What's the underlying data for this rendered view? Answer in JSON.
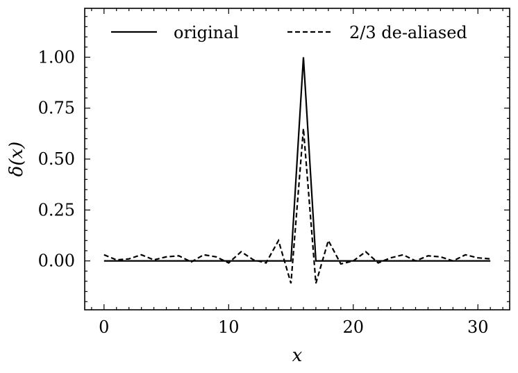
{
  "chart_data": {
    "type": "line",
    "xlabel": "x",
    "ylabel": "δ(x)",
    "xlim": [
      -1.55,
      32.55
    ],
    "ylim": [
      -0.24,
      1.24
    ],
    "x_ticks": [
      0,
      10,
      20,
      30
    ],
    "x_tick_labels": [
      "0",
      "10",
      "20",
      "30"
    ],
    "y_ticks": [
      0.0,
      0.25,
      0.5,
      0.75,
      1.0
    ],
    "y_tick_labels": [
      "0.00",
      "0.25",
      "0.50",
      "0.75",
      "1.00"
    ],
    "legend_position": "top",
    "grid": false,
    "x": [
      0,
      1,
      2,
      3,
      4,
      5,
      6,
      7,
      8,
      9,
      10,
      11,
      12,
      13,
      14,
      15,
      16,
      17,
      18,
      19,
      20,
      21,
      22,
      23,
      24,
      25,
      26,
      27,
      28,
      29,
      30,
      31
    ],
    "series": [
      {
        "name": "original",
        "style": "solid",
        "color": "#000000",
        "values": [
          0,
          0,
          0,
          0,
          0,
          0,
          0,
          0,
          0,
          0,
          0,
          0,
          0,
          0,
          0,
          0,
          1,
          0,
          0,
          0,
          0,
          0,
          0,
          0,
          0,
          0,
          0,
          0,
          0,
          0,
          0,
          0
        ]
      },
      {
        "name": "2/3 de-aliased",
        "style": "dashed",
        "color": "#000000",
        "values": [
          0.03,
          0.005,
          0.01,
          0.03,
          0.005,
          0.02,
          0.025,
          -0.005,
          0.03,
          0.02,
          -0.01,
          0.045,
          0.005,
          -0.01,
          0.1,
          -0.11,
          0.65,
          -0.11,
          0.1,
          -0.015,
          0.0,
          0.045,
          -0.01,
          0.015,
          0.03,
          0.0,
          0.025,
          0.02,
          0.0,
          0.03,
          0.015,
          0.01
        ]
      }
    ]
  }
}
